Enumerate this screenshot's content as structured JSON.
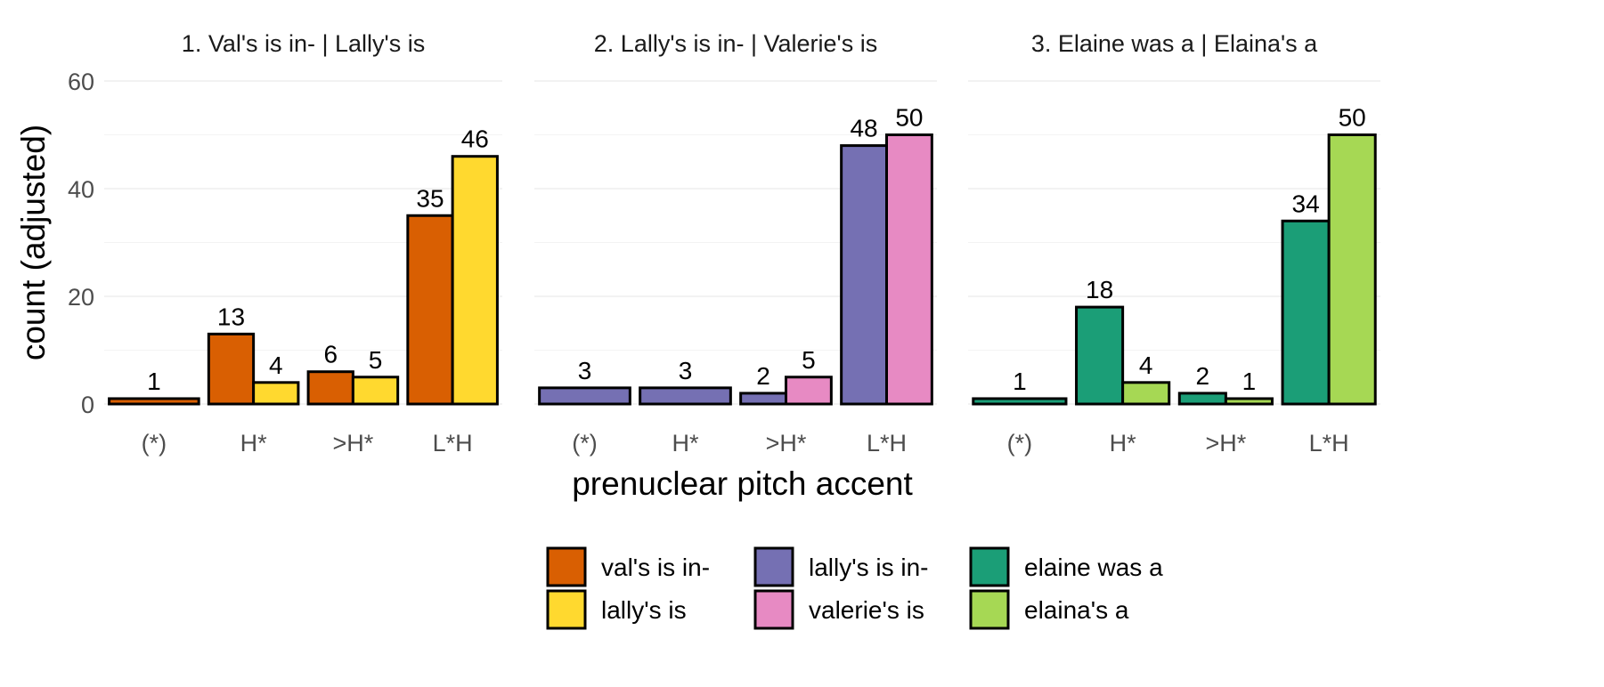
{
  "chart_data": {
    "type": "bar",
    "xlabel": "prenuclear pitch accent",
    "ylabel": "count (adjusted)",
    "ylim": [
      0,
      60
    ],
    "yticks": [
      0,
      20,
      40,
      60
    ],
    "grid": true,
    "legend_position": "bottom",
    "categories": [
      "(*)",
      "H*",
      ">H*",
      "L*H"
    ],
    "panels": [
      {
        "title": "1. Val's is in- | Lally's is",
        "series": [
          {
            "name": "val's is in-",
            "color": "#D95F02",
            "values": [
              1,
              13,
              6,
              35
            ]
          },
          {
            "name": "lally's is",
            "color": "#FFD92F",
            "values": [
              null,
              4,
              5,
              46
            ]
          }
        ]
      },
      {
        "title": "2. Lally's is in- | Valerie's is",
        "series": [
          {
            "name": "lally's is in-",
            "color": "#7570B3",
            "values": [
              3,
              3,
              2,
              48
            ]
          },
          {
            "name": "valerie's is",
            "color": "#E78AC3",
            "values": [
              null,
              null,
              5,
              50
            ]
          }
        ]
      },
      {
        "title": "3. Elaine was a | Elaina's a",
        "series": [
          {
            "name": "elaine was a",
            "color": "#1B9E77",
            "values": [
              1,
              18,
              2,
              34
            ]
          },
          {
            "name": "elaina's a",
            "color": "#A6D854",
            "values": [
              null,
              4,
              1,
              50
            ]
          }
        ]
      }
    ]
  }
}
